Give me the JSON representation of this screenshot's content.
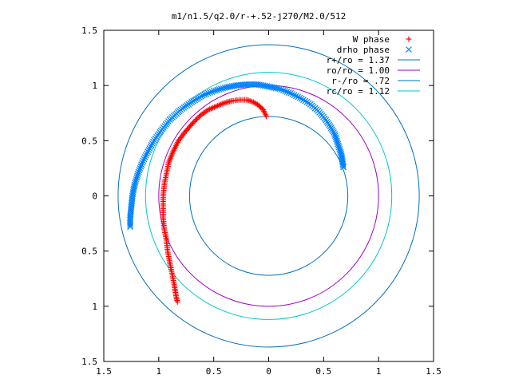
{
  "chart_data": {
    "type": "scatter",
    "title": "m1/n1.5/q2.0/r-+.52-j270/M2.0/512",
    "xlim": [
      -1.5,
      1.5
    ],
    "ylim": [
      -1.5,
      1.5
    ],
    "xticks": [
      {
        "v": -1.5,
        "label": "1.5"
      },
      {
        "v": -1,
        "label": "1"
      },
      {
        "v": -0.5,
        "label": "0.5"
      },
      {
        "v": 0,
        "label": "0"
      },
      {
        "v": 0.5,
        "label": "0.5"
      },
      {
        "v": 1,
        "label": "1"
      },
      {
        "v": 1.5,
        "label": "1.5"
      }
    ],
    "yticks": [
      {
        "v": 1.5,
        "label": "1.5"
      },
      {
        "v": 1,
        "label": "1"
      },
      {
        "v": 0.5,
        "label": "0.5"
      },
      {
        "v": 0,
        "label": "0"
      },
      {
        "v": -0.5,
        "label": "0.5"
      },
      {
        "v": -1,
        "label": "1"
      },
      {
        "v": -1.5,
        "label": "1.5"
      }
    ],
    "grid": false,
    "legend_position": "top-right",
    "series": [
      {
        "name": "W phase",
        "kind": "points",
        "marker": "plus",
        "color": "#ff0000",
        "points": [
          [
            -0.02,
            0.72
          ],
          [
            -0.05,
            0.78
          ],
          [
            -0.09,
            0.82
          ],
          [
            -0.14,
            0.85
          ],
          [
            -0.2,
            0.87
          ],
          [
            -0.27,
            0.87
          ],
          [
            -0.34,
            0.86
          ],
          [
            -0.41,
            0.84
          ],
          [
            -0.48,
            0.81
          ],
          [
            -0.55,
            0.78
          ],
          [
            -0.62,
            0.73
          ],
          [
            -0.69,
            0.66
          ],
          [
            -0.76,
            0.58
          ],
          [
            -0.82,
            0.5
          ],
          [
            -0.87,
            0.4
          ],
          [
            -0.91,
            0.3
          ],
          [
            -0.93,
            0.2
          ],
          [
            -0.95,
            0.1
          ],
          [
            -0.96,
            0.0
          ],
          [
            -0.96,
            -0.1
          ],
          [
            -0.96,
            -0.2
          ],
          [
            -0.95,
            -0.3
          ],
          [
            -0.93,
            -0.4
          ],
          [
            -0.92,
            -0.5
          ],
          [
            -0.9,
            -0.6
          ],
          [
            -0.88,
            -0.7
          ],
          [
            -0.86,
            -0.8
          ],
          [
            -0.85,
            -0.86
          ],
          [
            -0.84,
            -0.92
          ],
          [
            -0.83,
            -0.96
          ]
        ]
      },
      {
        "name": "drho phase",
        "kind": "points",
        "marker": "cross",
        "color": "#0080ff",
        "points": [
          [
            0.68,
            0.26
          ],
          [
            0.67,
            0.32
          ],
          [
            0.66,
            0.38
          ],
          [
            0.64,
            0.44
          ],
          [
            0.62,
            0.5
          ],
          [
            0.6,
            0.56
          ],
          [
            0.56,
            0.63
          ],
          [
            0.51,
            0.7
          ],
          [
            0.45,
            0.77
          ],
          [
            0.38,
            0.83
          ],
          [
            0.3,
            0.88
          ],
          [
            0.2,
            0.93
          ],
          [
            0.1,
            0.97
          ],
          [
            0.0,
            0.99
          ],
          [
            -0.1,
            1.01
          ],
          [
            -0.2,
            1.01
          ],
          [
            -0.3,
            1.0
          ],
          [
            -0.4,
            0.98
          ],
          [
            -0.5,
            0.95
          ],
          [
            -0.6,
            0.91
          ],
          [
            -0.7,
            0.85
          ],
          [
            -0.8,
            0.78
          ],
          [
            -0.9,
            0.69
          ],
          [
            -0.98,
            0.59
          ],
          [
            -1.05,
            0.49
          ],
          [
            -1.1,
            0.4
          ],
          [
            -1.15,
            0.3
          ],
          [
            -1.19,
            0.2
          ],
          [
            -1.22,
            0.1
          ],
          [
            -1.24,
            0.0
          ],
          [
            -1.25,
            -0.1
          ],
          [
            -1.26,
            -0.2
          ],
          [
            -1.26,
            -0.28
          ]
        ]
      },
      {
        "name": "r+/ro = 1.37",
        "kind": "circle",
        "radius": 1.37,
        "color": "#0070c0"
      },
      {
        "name": "ro/ro = 1.00",
        "kind": "circle",
        "radius": 1.0,
        "color": "#a000c8"
      },
      {
        "name": "r-/ro = .72",
        "kind": "circle",
        "radius": 0.72,
        "color": "#0070c0"
      },
      {
        "name": "rc/ro = 1.12",
        "kind": "circle",
        "radius": 1.12,
        "color": "#00c8c8"
      }
    ]
  }
}
